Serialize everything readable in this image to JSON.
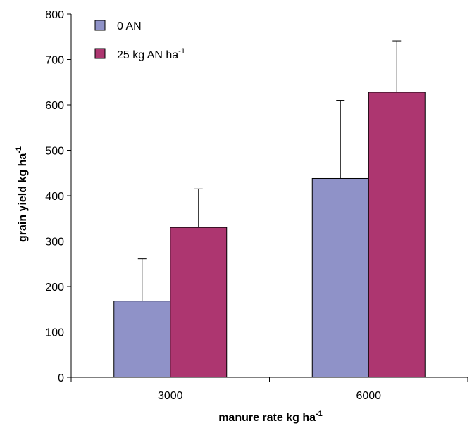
{
  "chart_data": {
    "type": "bar",
    "categories": [
      "3000",
      "6000"
    ],
    "series": [
      {
        "name": "0 AN",
        "color": "#8f92c8",
        "values": [
          168,
          438
        ],
        "error_upper": [
          261,
          610
        ]
      },
      {
        "name": "25 kg AN ha",
        "name_sup": "-1",
        "color": "#ad3670",
        "values": [
          330,
          628
        ],
        "error_upper": [
          415,
          741
        ]
      }
    ],
    "xlabel": "manure rate  kg ha",
    "xlabel_sup": "-1",
    "ylabel": "grain yield kg ha",
    "ylabel_sup": "-1",
    "ylim": [
      0,
      800
    ],
    "yticks": [
      "0",
      "100",
      "200",
      "300",
      "400",
      "500",
      "600",
      "700",
      "800"
    ],
    "grid": false,
    "legend_position": "top-left"
  }
}
